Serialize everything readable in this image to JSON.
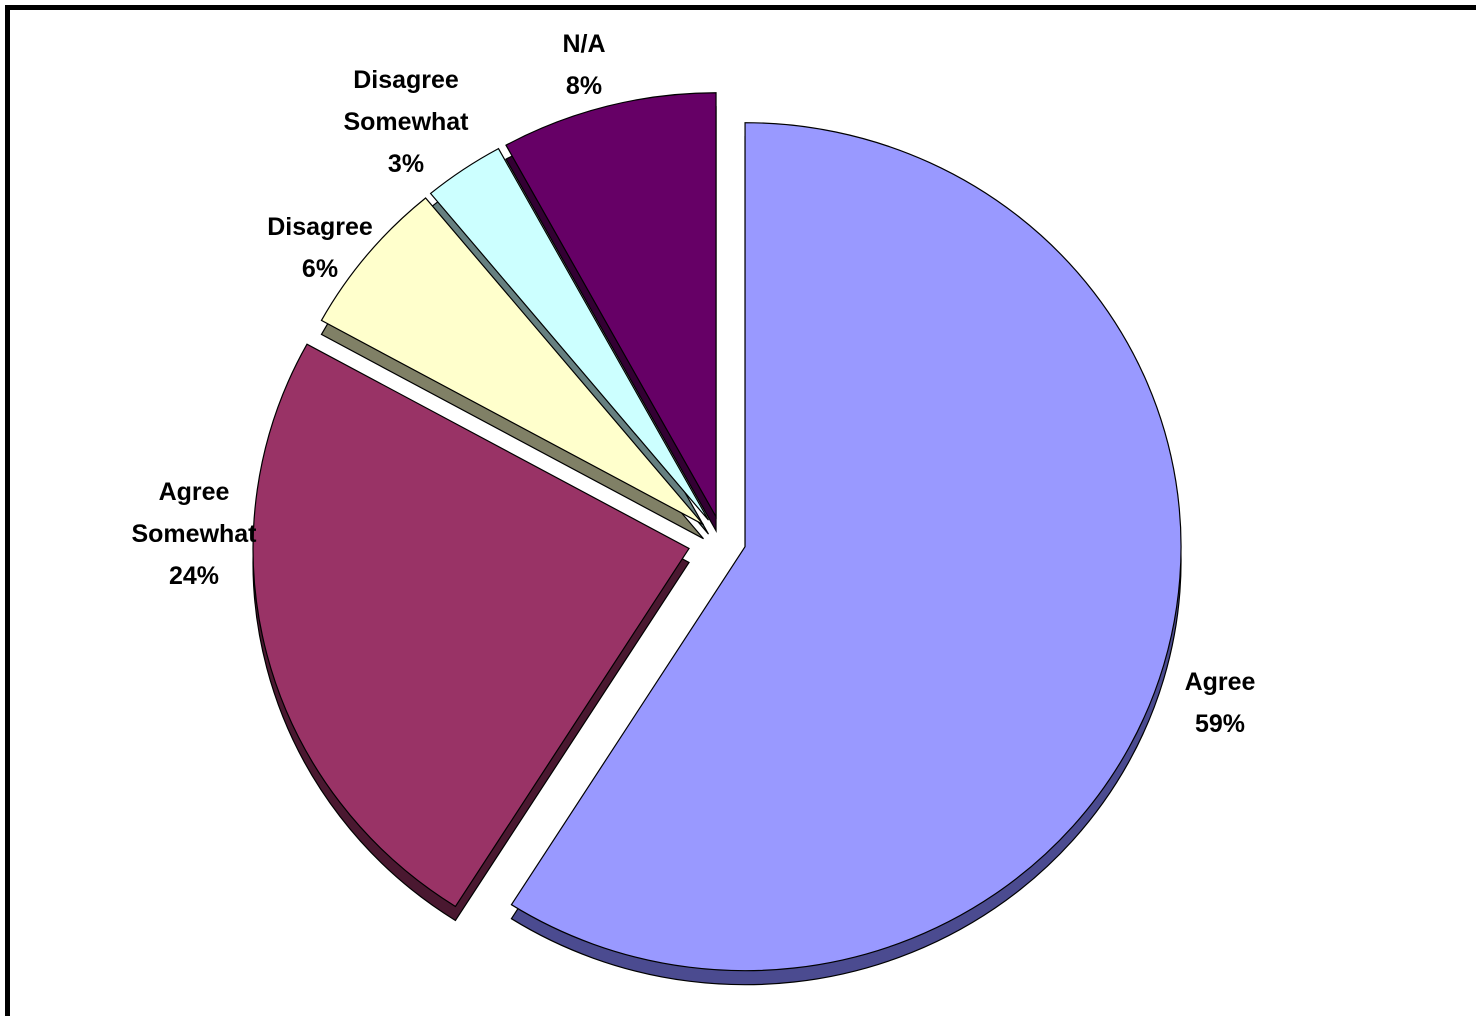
{
  "chart_data": {
    "type": "pie",
    "style": "3d-exploded",
    "slices": [
      {
        "label_lines": [
          "Agree"
        ],
        "percent_label": "59%",
        "value": 59,
        "color": "#9999FF",
        "side_color": "#4B4B90"
      },
      {
        "label_lines": [
          "Agree",
          "Somewhat"
        ],
        "percent_label": "24%",
        "value": 24,
        "color": "#993366",
        "side_color": "#4A1830"
      },
      {
        "label_lines": [
          "Disagree"
        ],
        "percent_label": "6%",
        "value": 6,
        "color": "#FFFFCC",
        "side_color": "#808066"
      },
      {
        "label_lines": [
          "Disagree",
          "Somewhat"
        ],
        "percent_label": "3%",
        "value": 3,
        "color": "#CCFFFF",
        "side_color": "#668080"
      },
      {
        "label_lines": [
          "N/A"
        ],
        "percent_label": "8%",
        "value": 8,
        "color": "#660066",
        "side_color": "#330033"
      }
    ]
  }
}
